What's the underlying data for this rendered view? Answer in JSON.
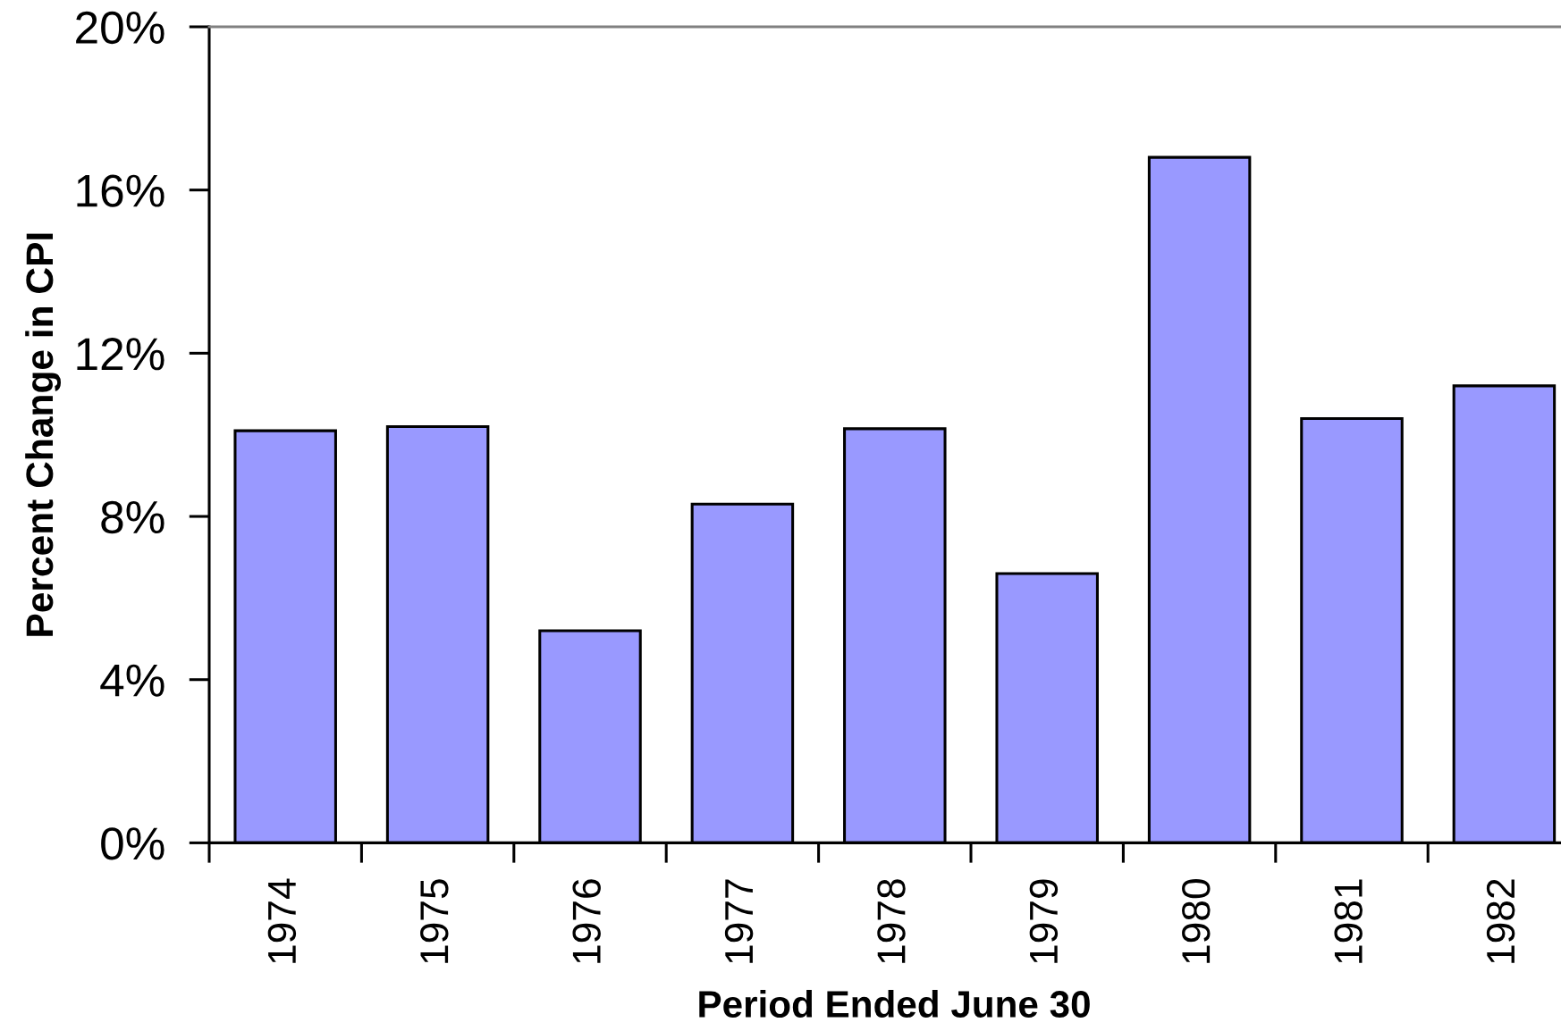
{
  "chart_data": {
    "type": "bar",
    "xlabel": "Period Ended June 30",
    "ylabel": "Percent Change in CPI",
    "categories": [
      "1974",
      "1975",
      "1976",
      "1977",
      "1978",
      "1979",
      "1980",
      "1981",
      "1982"
    ],
    "values": [
      10.1,
      10.2,
      5.2,
      8.3,
      10.15,
      6.6,
      16.8,
      10.4,
      11.2
    ],
    "color": "#9999ff",
    "ylim": [
      0,
      20
    ],
    "yticks": [
      {
        "value": 0,
        "label": "0%"
      },
      {
        "value": 4,
        "label": "4%"
      },
      {
        "value": 8,
        "label": "8%"
      },
      {
        "value": 12,
        "label": "12%"
      },
      {
        "value": 16,
        "label": "16%"
      },
      {
        "value": 20,
        "label": "20%"
      }
    ]
  }
}
